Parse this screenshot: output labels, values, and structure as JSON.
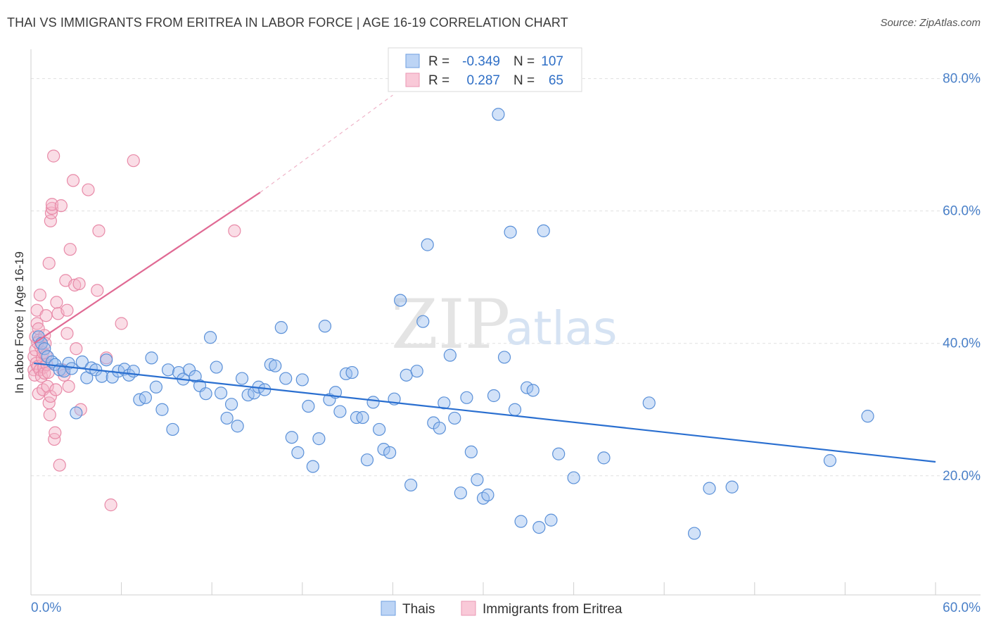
{
  "title": "THAI VS IMMIGRANTS FROM ERITREA IN LABOR FORCE | AGE 16-19 CORRELATION CHART",
  "source": "Source: ZipAtlas.com",
  "watermark": {
    "zip": "ZIP",
    "atlas": "atlas"
  },
  "colors": {
    "thai_fill": "#9bbff0",
    "thai_stroke": "#5a90d8",
    "thai_line": "#2a6fd0",
    "eritrea_fill": "#f5b3c8",
    "eritrea_stroke": "#e88aa8",
    "eritrea_line": "#e06a94",
    "grid": "#e0e0e0",
    "axis_label": "#4a80c8"
  },
  "legend": {
    "row1": {
      "r_label": "R =",
      "r_value": "-0.349",
      "n_label": "N =",
      "n_value": "107"
    },
    "row2": {
      "r_label": "R =",
      "r_value": "0.287",
      "n_label": "N =",
      "n_value": "65"
    }
  },
  "bottom_legend": {
    "thai": "Thais",
    "eritrea": "Immigrants from Eritrea"
  },
  "chart_data": {
    "type": "scatter",
    "title": "THAI VS IMMIGRANTS FROM ERITREA IN LABOR FORCE | AGE 16-19 CORRELATION CHART",
    "xlabel": "",
    "ylabel": "In Labor Force | Age 16-19",
    "xlim": [
      0,
      60
    ],
    "ylim": [
      2,
      84
    ],
    "x_tick_labels": [
      "0.0%",
      "60.0%"
    ],
    "y_ticks": [
      20,
      40,
      60,
      80
    ],
    "y_tick_labels": [
      "20.0%",
      "40.0%",
      "60.0%",
      "80.0%"
    ],
    "grid": true,
    "legend_position": "top-center",
    "series": [
      {
        "name": "Thais",
        "r": -0.349,
        "n": 107,
        "trend": {
          "x": [
            0.2,
            60
          ],
          "y": [
            37.0,
            22.1
          ]
        },
        "points": [
          [
            0.5,
            41.0
          ],
          [
            0.7,
            40.0
          ],
          [
            0.9,
            39.2
          ],
          [
            1.1,
            38.0
          ],
          [
            1.4,
            37.2
          ],
          [
            1.6,
            36.8
          ],
          [
            1.9,
            36.0
          ],
          [
            2.2,
            35.8
          ],
          [
            2.5,
            37.0
          ],
          [
            2.7,
            36.2
          ],
          [
            3.0,
            29.5
          ],
          [
            3.4,
            37.2
          ],
          [
            3.7,
            34.8
          ],
          [
            4.0,
            36.3
          ],
          [
            4.3,
            36.0
          ],
          [
            4.7,
            35.0
          ],
          [
            5.0,
            37.5
          ],
          [
            5.4,
            34.9
          ],
          [
            5.8,
            35.8
          ],
          [
            6.2,
            36.1
          ],
          [
            6.5,
            35.2
          ],
          [
            6.8,
            35.8
          ],
          [
            7.2,
            31.5
          ],
          [
            7.6,
            31.8
          ],
          [
            8.0,
            37.8
          ],
          [
            8.3,
            33.4
          ],
          [
            8.7,
            30.0
          ],
          [
            9.1,
            36.0
          ],
          [
            9.4,
            27.0
          ],
          [
            9.8,
            35.6
          ],
          [
            10.1,
            34.6
          ],
          [
            10.5,
            36.0
          ],
          [
            10.9,
            35.0
          ],
          [
            11.2,
            33.6
          ],
          [
            11.6,
            32.4
          ],
          [
            11.9,
            40.9
          ],
          [
            12.3,
            36.4
          ],
          [
            12.6,
            32.5
          ],
          [
            13.0,
            28.7
          ],
          [
            13.3,
            30.8
          ],
          [
            13.7,
            27.5
          ],
          [
            14.0,
            34.7
          ],
          [
            14.4,
            32.2
          ],
          [
            14.8,
            32.5
          ],
          [
            15.1,
            33.4
          ],
          [
            15.5,
            33.0
          ],
          [
            15.9,
            36.8
          ],
          [
            16.2,
            36.6
          ],
          [
            16.6,
            42.4
          ],
          [
            16.9,
            34.7
          ],
          [
            17.3,
            25.8
          ],
          [
            17.7,
            23.5
          ],
          [
            18.0,
            34.5
          ],
          [
            18.4,
            30.5
          ],
          [
            18.7,
            21.4
          ],
          [
            19.1,
            25.6
          ],
          [
            19.5,
            42.6
          ],
          [
            19.8,
            31.5
          ],
          [
            20.2,
            32.6
          ],
          [
            20.5,
            29.7
          ],
          [
            20.9,
            35.4
          ],
          [
            21.3,
            35.6
          ],
          [
            21.6,
            28.8
          ],
          [
            22.0,
            28.8
          ],
          [
            22.3,
            22.4
          ],
          [
            22.7,
            31.1
          ],
          [
            23.1,
            27.0
          ],
          [
            23.4,
            24.0
          ],
          [
            23.8,
            23.5
          ],
          [
            24.1,
            31.6
          ],
          [
            24.5,
            46.5
          ],
          [
            24.9,
            35.2
          ],
          [
            25.2,
            18.6
          ],
          [
            25.6,
            35.8
          ],
          [
            26.0,
            43.3
          ],
          [
            26.3,
            54.9
          ],
          [
            26.7,
            28.0
          ],
          [
            27.1,
            27.2
          ],
          [
            27.4,
            31.0
          ],
          [
            27.8,
            38.2
          ],
          [
            28.1,
            28.7
          ],
          [
            28.5,
            17.4
          ],
          [
            28.9,
            31.8
          ],
          [
            29.2,
            23.6
          ],
          [
            29.6,
            19.4
          ],
          [
            30.0,
            16.6
          ],
          [
            30.3,
            17.1
          ],
          [
            30.7,
            32.1
          ],
          [
            31.0,
            74.6
          ],
          [
            31.4,
            37.9
          ],
          [
            31.8,
            56.8
          ],
          [
            32.1,
            30.0
          ],
          [
            32.5,
            13.1
          ],
          [
            32.9,
            33.3
          ],
          [
            33.3,
            32.9
          ],
          [
            33.7,
            12.2
          ],
          [
            34.0,
            57.0
          ],
          [
            34.5,
            13.3
          ],
          [
            35.0,
            23.3
          ],
          [
            36.0,
            19.7
          ],
          [
            38.0,
            22.7
          ],
          [
            41.0,
            31.0
          ],
          [
            44.0,
            11.3
          ],
          [
            45.0,
            18.1
          ],
          [
            46.5,
            18.3
          ],
          [
            53.0,
            22.3
          ],
          [
            55.5,
            29.0
          ]
        ]
      },
      {
        "name": "Immigrants from Eritrea",
        "r": 0.287,
        "n": 65,
        "trend": {
          "x": [
            0.2,
            15.2
          ],
          "y": [
            40.0,
            62.8
          ]
        },
        "trend_dashed": {
          "x": [
            15.2,
            24.0
          ],
          "y": [
            62.8,
            77.5
          ]
        },
        "points": [
          [
            0.2,
            38.0
          ],
          [
            0.2,
            36.0
          ],
          [
            0.25,
            35.2
          ],
          [
            0.3,
            41.0
          ],
          [
            0.3,
            39.0
          ],
          [
            0.35,
            37.0
          ],
          [
            0.4,
            45.0
          ],
          [
            0.4,
            43.0
          ],
          [
            0.45,
            36.5
          ],
          [
            0.5,
            32.4
          ],
          [
            0.5,
            42.2
          ],
          [
            0.55,
            40.5
          ],
          [
            0.6,
            36.0
          ],
          [
            0.6,
            47.3
          ],
          [
            0.65,
            39.4
          ],
          [
            0.7,
            35.0
          ],
          [
            0.75,
            37.8
          ],
          [
            0.8,
            33.0
          ],
          [
            0.8,
            38.6
          ],
          [
            0.85,
            36.4
          ],
          [
            0.9,
            41.2
          ],
          [
            0.9,
            35.5
          ],
          [
            0.95,
            40.0
          ],
          [
            1.0,
            44.2
          ],
          [
            1.0,
            38.2
          ],
          [
            1.05,
            36.8
          ],
          [
            1.1,
            33.5
          ],
          [
            1.15,
            35.6
          ],
          [
            1.2,
            52.1
          ],
          [
            1.2,
            31.0
          ],
          [
            1.25,
            29.2
          ],
          [
            1.3,
            58.5
          ],
          [
            1.3,
            32.0
          ],
          [
            1.35,
            59.7
          ],
          [
            1.4,
            60.4
          ],
          [
            1.4,
            61.0
          ],
          [
            1.5,
            68.3
          ],
          [
            1.55,
            25.5
          ],
          [
            1.6,
            26.5
          ],
          [
            1.7,
            46.2
          ],
          [
            1.8,
            44.5
          ],
          [
            1.9,
            21.6
          ],
          [
            2.0,
            60.8
          ],
          [
            2.1,
            36.0
          ],
          [
            2.2,
            35.2
          ],
          [
            2.3,
            49.5
          ],
          [
            2.4,
            45.0
          ],
          [
            2.5,
            33.5
          ],
          [
            2.6,
            54.2
          ],
          [
            2.8,
            64.6
          ],
          [
            2.9,
            48.8
          ],
          [
            3.0,
            39.2
          ],
          [
            3.2,
            49.0
          ],
          [
            3.3,
            30.0
          ],
          [
            3.8,
            63.2
          ],
          [
            4.4,
            48.0
          ],
          [
            4.5,
            57.0
          ],
          [
            5.0,
            37.8
          ],
          [
            5.3,
            15.6
          ],
          [
            6.0,
            43.0
          ],
          [
            6.8,
            67.6
          ],
          [
            13.5,
            57.0
          ],
          [
            2.4,
            41.5
          ],
          [
            1.65,
            33.0
          ],
          [
            0.45,
            40.1
          ]
        ]
      }
    ]
  }
}
